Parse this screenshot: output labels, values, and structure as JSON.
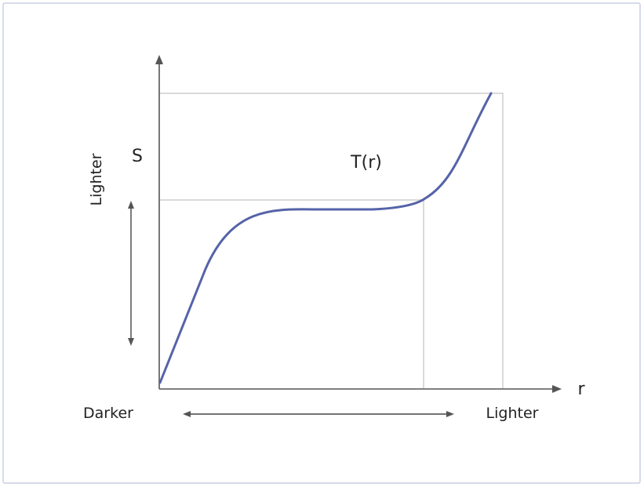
{
  "labels": {
    "s_axis": "S",
    "r_axis": "r",
    "curve": "T(r)",
    "y_lighter": "Lighter",
    "x_darker": "Darker",
    "x_lighter": "Lighter"
  },
  "colors": {
    "curve": "#5563a8",
    "axes": "#555555",
    "guides": "#dadada",
    "frame": "#c9cfe3"
  }
}
